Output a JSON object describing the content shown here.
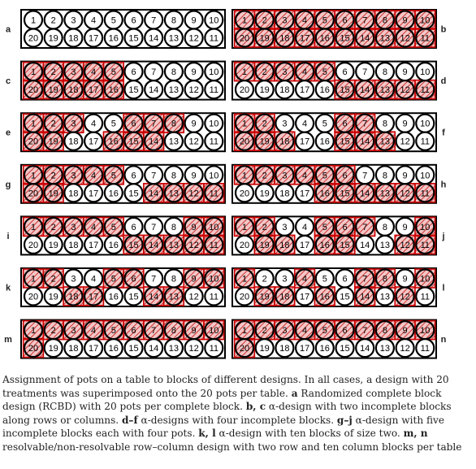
{
  "colors": {
    "block": "#cc0000",
    "hatch_bg": "#f3c6c6",
    "hatch": "#cc3333",
    "outline": "#000000"
  },
  "pots": {
    "top_row": [
      "1",
      "2",
      "3",
      "4",
      "5",
      "6",
      "7",
      "8",
      "9",
      "10"
    ],
    "bottom_row": [
      "20",
      "19",
      "18",
      "17",
      "16",
      "15",
      "14",
      "13",
      "12",
      "11"
    ]
  },
  "panels": [
    {
      "label": "a",
      "hatched": []
    },
    {
      "label": "b",
      "hatched": [
        1,
        2,
        3,
        4,
        5,
        6,
        7,
        8,
        9,
        10,
        11,
        12,
        13,
        14,
        15,
        16,
        17,
        18,
        19,
        20
      ]
    },
    {
      "label": "c",
      "hatched": [
        1,
        2,
        3,
        4,
        5,
        20,
        19,
        18,
        17,
        16
      ]
    },
    {
      "label": "d",
      "hatched": [
        1,
        2,
        3,
        4,
        5,
        15,
        14,
        13,
        12,
        11
      ]
    },
    {
      "label": "e",
      "hatched": [
        1,
        2,
        3,
        6,
        7,
        8,
        20,
        19,
        16,
        15,
        14
      ]
    },
    {
      "label": "f",
      "hatched": [
        1,
        2,
        6,
        7,
        20,
        19,
        18,
        15,
        14,
        13
      ]
    },
    {
      "label": "g",
      "hatched": [
        1,
        2,
        3,
        4,
        5,
        20,
        19,
        14,
        13,
        12,
        11
      ]
    },
    {
      "label": "h",
      "hatched": [
        1,
        2,
        3,
        4,
        5,
        6,
        16,
        15,
        14,
        13,
        12,
        11
      ]
    },
    {
      "label": "i",
      "hatched": [
        1,
        2,
        3,
        4,
        5,
        15,
        14,
        13,
        12,
        11,
        9,
        10
      ]
    },
    {
      "label": "j",
      "hatched": [
        1,
        2,
        5,
        6,
        7,
        10,
        19,
        18,
        16,
        15,
        12,
        11
      ]
    },
    {
      "label": "k",
      "hatched": [
        1,
        2,
        5,
        6,
        9,
        10,
        18,
        17,
        14,
        13
      ]
    },
    {
      "label": "l",
      "hatched": [
        1,
        4,
        7,
        8,
        10,
        19,
        18,
        16,
        14,
        12
      ]
    },
    {
      "label": "m",
      "hatched": [
        1,
        2,
        3,
        4,
        5,
        6,
        7,
        8,
        9,
        10,
        20
      ]
    },
    {
      "label": "n",
      "hatched": [
        1,
        2,
        3,
        4,
        5,
        6,
        7,
        8,
        9,
        10,
        20
      ]
    }
  ],
  "caption": {
    "t1": "Assignment of pots on a table to blocks of different designs. In all cases, a design with 20 treatments was superimposed onto the 20 pots per table. ",
    "a": "a",
    "t2": " Randomized complete block design (RCBD) with 20 pots per complete block. ",
    "bc": "b, c",
    "t3": " α-design with two incomplete blocks along rows or columns. ",
    "df": "d–f",
    "t4": " α-designs with four incomplete blocks. ",
    "gj": "g–j",
    "t5": " α-design with five incomplete blocks each with four pots. ",
    "kl": "k, l",
    "t6": " α-design with ten blocks of size two. ",
    "mn": "m, n",
    "t7": " resolvable/non-resolvable row–column design with two row and ten column blocks per table"
  }
}
